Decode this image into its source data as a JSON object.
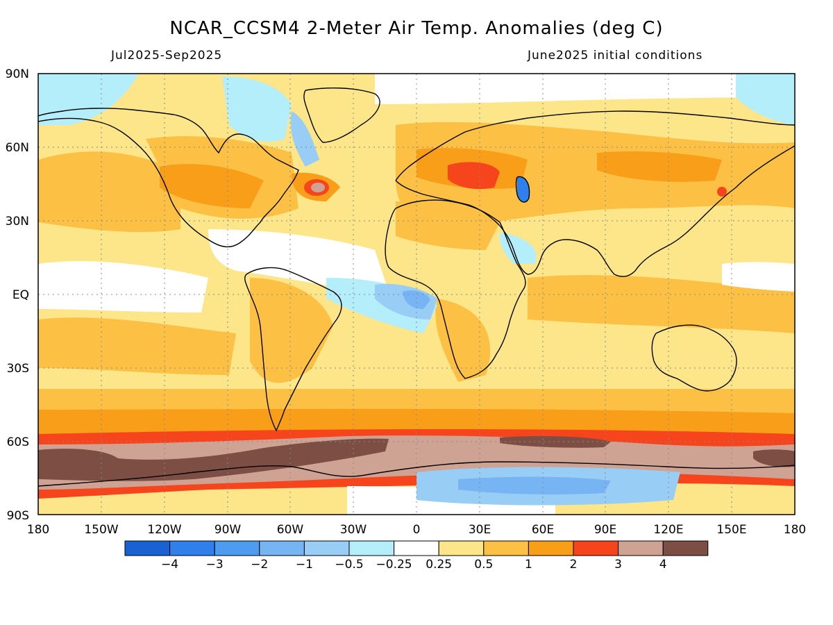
{
  "header": {
    "title": "NCAR_CCSM4 2-Meter Air Temp. Anomalies (deg C)",
    "period": "Jul2025-Sep2025",
    "init": "June2025 initial conditions"
  },
  "map": {
    "lat_labels": [
      "90N",
      "60N",
      "30N",
      "EQ",
      "30S",
      "60S",
      "90S"
    ],
    "lon_labels": [
      "180",
      "150W",
      "120W",
      "90W",
      "60W",
      "30W",
      "0",
      "30E",
      "60E",
      "90E",
      "120E",
      "150E",
      "180"
    ],
    "graticule": "dotted",
    "colors": {
      "ocean_base": "#fbe27a",
      "warm1": "#fbc344",
      "warm2": "#f9a21a",
      "hot": "#f5411e",
      "very_hot": "#c8a096",
      "extreme": "#7a5044",
      "cool1": "#b2ecf8",
      "cool2": "#93cdf5",
      "cool3": "#6fadf0",
      "cold": "#3b8bf0",
      "coastline": "#000000"
    }
  },
  "legend": {
    "title": "",
    "colors": [
      "#1a62d4",
      "#2f80ec",
      "#4d9cf0",
      "#76b4f4",
      "#98cdf6",
      "#b4eefa",
      "#ffffff",
      "#fde58a",
      "#fcc144",
      "#f99e18",
      "#f6441c",
      "#cfa394",
      "#7d4f44"
    ],
    "labels": [
      "-4",
      "-3",
      "-2",
      "-1",
      "-0.5",
      "-0.25",
      "0.25",
      "0.5",
      "1",
      "2",
      "3",
      "4"
    ]
  }
}
